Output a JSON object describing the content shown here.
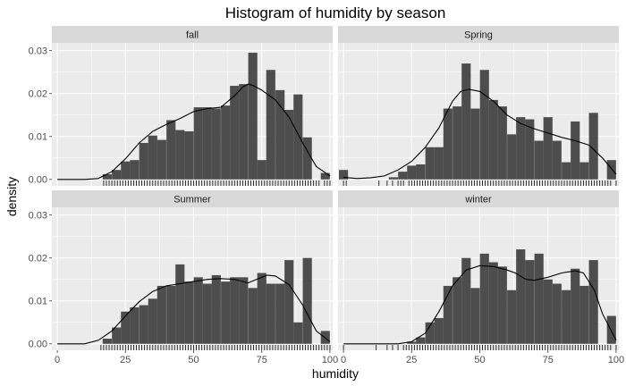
{
  "chart_data": {
    "type": "bar",
    "title": "Histogram of humidity by season",
    "xlabel": "humidity",
    "ylabel": "density",
    "xlim": [
      -2,
      101
    ],
    "ylim": [
      -0.0015,
      0.0318
    ],
    "x_ticks": [
      0,
      25,
      50,
      75,
      100
    ],
    "x_tick_labels": [
      "0",
      "25",
      "50",
      "75",
      "100"
    ],
    "y_ticks": [
      0,
      0.01,
      0.02,
      0.03
    ],
    "y_tick_labels": [
      "0.00",
      "0.01",
      "0.02",
      "0.03"
    ],
    "bin_width": 3.33,
    "grid": true,
    "colors": {
      "panel_bg": "#ebebeb",
      "strip_bg": "#d9d9d9",
      "bar": "#4d4d4d",
      "grid": "#ffffff",
      "density": "#000000",
      "rug": "#000000"
    },
    "panels": [
      {
        "label": "fall",
        "bins": [
          {
            "x": 18.3,
            "y": 0.0012
          },
          {
            "x": 21.7,
            "y": 0.0022
          },
          {
            "x": 25.0,
            "y": 0.0042
          },
          {
            "x": 28.3,
            "y": 0.0045
          },
          {
            "x": 31.7,
            "y": 0.0085
          },
          {
            "x": 35.0,
            "y": 0.0102
          },
          {
            "x": 38.3,
            "y": 0.0092
          },
          {
            "x": 41.7,
            "y": 0.0138
          },
          {
            "x": 45.0,
            "y": 0.0115
          },
          {
            "x": 48.3,
            "y": 0.0112
          },
          {
            "x": 51.7,
            "y": 0.0168
          },
          {
            "x": 55.0,
            "y": 0.0168
          },
          {
            "x": 58.3,
            "y": 0.0165
          },
          {
            "x": 61.7,
            "y": 0.0172
          },
          {
            "x": 65.0,
            "y": 0.0218
          },
          {
            "x": 68.3,
            "y": 0.0222
          },
          {
            "x": 71.7,
            "y": 0.0295
          },
          {
            "x": 75.0,
            "y": 0.0045
          },
          {
            "x": 78.3,
            "y": 0.0255
          },
          {
            "x": 81.7,
            "y": 0.0208
          },
          {
            "x": 85.0,
            "y": 0.0162
          },
          {
            "x": 88.3,
            "y": 0.0198
          },
          {
            "x": 91.7,
            "y": 0.0098
          },
          {
            "x": 95.0,
            "y": 0.0
          },
          {
            "x": 98.3,
            "y": 0.0015
          }
        ],
        "density": [
          [
            0,
            0
          ],
          [
            10,
            0
          ],
          [
            15,
            0.0002
          ],
          [
            20,
            0.0018
          ],
          [
            25,
            0.0048
          ],
          [
            30,
            0.0085
          ],
          [
            35,
            0.0112
          ],
          [
            40,
            0.0128
          ],
          [
            45,
            0.0142
          ],
          [
            50,
            0.0158
          ],
          [
            55,
            0.0165
          ],
          [
            60,
            0.0168
          ],
          [
            65,
            0.0195
          ],
          [
            68,
            0.0215
          ],
          [
            70,
            0.0222
          ],
          [
            72,
            0.0218
          ],
          [
            75,
            0.0208
          ],
          [
            80,
            0.0185
          ],
          [
            85,
            0.0145
          ],
          [
            90,
            0.0085
          ],
          [
            95,
            0.003
          ],
          [
            100,
            0.0008
          ]
        ],
        "rug": [
          17,
          18,
          19,
          20,
          21,
          22,
          23,
          24,
          25,
          26,
          27,
          28,
          29,
          30,
          31,
          32,
          33,
          34,
          35,
          36,
          37,
          38,
          39,
          40,
          41,
          42,
          43,
          44,
          45,
          46,
          47,
          48,
          49,
          50,
          51,
          52,
          53,
          54,
          55,
          56,
          57,
          58,
          59,
          60,
          61,
          62,
          63,
          64,
          65,
          66,
          67,
          68,
          69,
          70,
          71,
          72,
          73,
          74,
          75,
          76,
          77,
          78,
          79,
          80,
          81,
          82,
          83,
          84,
          85,
          86,
          87,
          88,
          89,
          90,
          91,
          92,
          93,
          94,
          95,
          96,
          98,
          99,
          100
        ]
      },
      {
        "label": "Spring",
        "bins": [
          {
            "x": 0.0,
            "y": 0.0022
          },
          {
            "x": 18.3,
            "y": 0.0005
          },
          {
            "x": 21.7,
            "y": 0.0018
          },
          {
            "x": 25.0,
            "y": 0.0032
          },
          {
            "x": 28.3,
            "y": 0.0035
          },
          {
            "x": 31.7,
            "y": 0.0075
          },
          {
            "x": 35.0,
            "y": 0.0075
          },
          {
            "x": 38.3,
            "y": 0.0165
          },
          {
            "x": 41.7,
            "y": 0.017
          },
          {
            "x": 45.0,
            "y": 0.027
          },
          {
            "x": 48.3,
            "y": 0.0165
          },
          {
            "x": 51.7,
            "y": 0.0255
          },
          {
            "x": 55.0,
            "y": 0.0185
          },
          {
            "x": 58.3,
            "y": 0.017
          },
          {
            "x": 61.7,
            "y": 0.0105
          },
          {
            "x": 65.0,
            "y": 0.0145
          },
          {
            "x": 68.3,
            "y": 0.014
          },
          {
            "x": 71.7,
            "y": 0.009
          },
          {
            "x": 75.0,
            "y": 0.0145
          },
          {
            "x": 78.3,
            "y": 0.009
          },
          {
            "x": 81.7,
            "y": 0.004
          },
          {
            "x": 85.0,
            "y": 0.0135
          },
          {
            "x": 88.3,
            "y": 0.004
          },
          {
            "x": 91.7,
            "y": 0.0155
          },
          {
            "x": 95.0,
            "y": 0.0
          },
          {
            "x": 98.3,
            "y": 0.0045
          }
        ],
        "density": [
          [
            0,
            0.0005
          ],
          [
            5,
            0.0002
          ],
          [
            10,
            0.0004
          ],
          [
            15,
            0.0008
          ],
          [
            20,
            0.0022
          ],
          [
            25,
            0.0042
          ],
          [
            30,
            0.0075
          ],
          [
            35,
            0.012
          ],
          [
            40,
            0.0182
          ],
          [
            43,
            0.0205
          ],
          [
            46,
            0.021
          ],
          [
            50,
            0.0205
          ],
          [
            55,
            0.0182
          ],
          [
            60,
            0.015
          ],
          [
            65,
            0.013
          ],
          [
            70,
            0.0118
          ],
          [
            75,
            0.0108
          ],
          [
            80,
            0.0098
          ],
          [
            85,
            0.009
          ],
          [
            90,
            0.008
          ],
          [
            95,
            0.005
          ],
          [
            100,
            0.0012
          ]
        ],
        "rug": [
          0,
          1,
          13,
          16,
          18,
          20,
          21,
          22,
          24,
          25,
          26,
          27,
          28,
          29,
          30,
          31,
          32,
          33,
          34,
          35,
          36,
          37,
          38,
          39,
          40,
          41,
          42,
          43,
          44,
          45,
          46,
          47,
          48,
          49,
          50,
          51,
          52,
          53,
          54,
          55,
          56,
          57,
          58,
          59,
          60,
          61,
          62,
          63,
          64,
          65,
          66,
          67,
          68,
          69,
          70,
          71,
          72,
          73,
          74,
          75,
          76,
          77,
          78,
          79,
          80,
          81,
          82,
          83,
          84,
          85,
          86,
          87,
          88,
          89,
          90,
          91,
          92,
          93,
          94,
          95,
          96,
          97,
          98,
          100
        ]
      },
      {
        "label": "Summer",
        "bins": [
          {
            "x": 18.3,
            "y": 0.0012
          },
          {
            "x": 21.7,
            "y": 0.0038
          },
          {
            "x": 25.0,
            "y": 0.0075
          },
          {
            "x": 28.3,
            "y": 0.0085
          },
          {
            "x": 31.7,
            "y": 0.009
          },
          {
            "x": 35.0,
            "y": 0.0105
          },
          {
            "x": 38.3,
            "y": 0.0135
          },
          {
            "x": 41.7,
            "y": 0.0135
          },
          {
            "x": 45.0,
            "y": 0.0185
          },
          {
            "x": 48.3,
            "y": 0.0145
          },
          {
            "x": 51.7,
            "y": 0.0155
          },
          {
            "x": 55.0,
            "y": 0.014
          },
          {
            "x": 58.3,
            "y": 0.016
          },
          {
            "x": 61.7,
            "y": 0.0145
          },
          {
            "x": 65.0,
            "y": 0.0155
          },
          {
            "x": 68.3,
            "y": 0.0155
          },
          {
            "x": 71.7,
            "y": 0.013
          },
          {
            "x": 75.0,
            "y": 0.0165
          },
          {
            "x": 78.3,
            "y": 0.014
          },
          {
            "x": 81.7,
            "y": 0.014
          },
          {
            "x": 85.0,
            "y": 0.0195
          },
          {
            "x": 88.3,
            "y": 0.005
          },
          {
            "x": 91.7,
            "y": 0.02
          },
          {
            "x": 95.0,
            "y": 0.0
          },
          {
            "x": 98.3,
            "y": 0.003
          }
        ],
        "density": [
          [
            0,
            0
          ],
          [
            10,
            0
          ],
          [
            15,
            0.0008
          ],
          [
            20,
            0.003
          ],
          [
            25,
            0.0065
          ],
          [
            30,
            0.0098
          ],
          [
            35,
            0.0122
          ],
          [
            40,
            0.0135
          ],
          [
            45,
            0.014
          ],
          [
            50,
            0.0145
          ],
          [
            55,
            0.015
          ],
          [
            60,
            0.0152
          ],
          [
            65,
            0.015
          ],
          [
            70,
            0.0142
          ],
          [
            73,
            0.015
          ],
          [
            77,
            0.016
          ],
          [
            80,
            0.0158
          ],
          [
            85,
            0.0138
          ],
          [
            90,
            0.009
          ],
          [
            95,
            0.003
          ],
          [
            100,
            0.0005
          ]
        ],
        "rug": [
          16,
          17,
          18,
          19,
          20,
          21,
          22,
          23,
          24,
          25,
          26,
          27,
          28,
          29,
          30,
          31,
          32,
          33,
          34,
          35,
          36,
          37,
          38,
          39,
          40,
          41,
          42,
          43,
          44,
          45,
          46,
          47,
          48,
          49,
          50,
          51,
          52,
          53,
          54,
          55,
          56,
          57,
          58,
          59,
          60,
          61,
          62,
          63,
          64,
          65,
          66,
          67,
          68,
          69,
          70,
          71,
          72,
          73,
          74,
          75,
          76,
          77,
          78,
          79,
          80,
          81,
          82,
          83,
          84,
          85,
          86,
          87,
          88,
          89,
          90,
          91,
          92,
          93,
          94,
          95,
          96,
          97,
          98,
          99,
          100
        ]
      },
      {
        "label": "winter",
        "bins": [
          {
            "x": 21.7,
            "y": 0.0
          },
          {
            "x": 25.0,
            "y": 0.0005
          },
          {
            "x": 28.3,
            "y": 0.0015
          },
          {
            "x": 31.7,
            "y": 0.005
          },
          {
            "x": 35.0,
            "y": 0.006
          },
          {
            "x": 38.3,
            "y": 0.0135
          },
          {
            "x": 41.7,
            "y": 0.0155
          },
          {
            "x": 45.0,
            "y": 0.02
          },
          {
            "x": 48.3,
            "y": 0.013
          },
          {
            "x": 51.7,
            "y": 0.021
          },
          {
            "x": 55.0,
            "y": 0.019
          },
          {
            "x": 58.3,
            "y": 0.018
          },
          {
            "x": 61.7,
            "y": 0.0125
          },
          {
            "x": 65.0,
            "y": 0.022
          },
          {
            "x": 68.3,
            "y": 0.0195
          },
          {
            "x": 71.7,
            "y": 0.021
          },
          {
            "x": 75.0,
            "y": 0.015
          },
          {
            "x": 78.3,
            "y": 0.014
          },
          {
            "x": 81.7,
            "y": 0.0125
          },
          {
            "x": 85.0,
            "y": 0.0175
          },
          {
            "x": 88.3,
            "y": 0.0135
          },
          {
            "x": 91.7,
            "y": 0.0195
          },
          {
            "x": 95.0,
            "y": 0.0
          },
          {
            "x": 98.3,
            "y": 0.0065
          }
        ],
        "density": [
          [
            0,
            0
          ],
          [
            20,
            0
          ],
          [
            25,
            0.0005
          ],
          [
            30,
            0.0025
          ],
          [
            35,
            0.0075
          ],
          [
            40,
            0.0135
          ],
          [
            45,
            0.0172
          ],
          [
            50,
            0.0182
          ],
          [
            55,
            0.018
          ],
          [
            60,
            0.0172
          ],
          [
            63,
            0.0165
          ],
          [
            67,
            0.015
          ],
          [
            70,
            0.0148
          ],
          [
            75,
            0.0155
          ],
          [
            80,
            0.0165
          ],
          [
            85,
            0.017
          ],
          [
            88,
            0.0165
          ],
          [
            92,
            0.0125
          ],
          [
            95,
            0.007
          ],
          [
            100,
            0.0008
          ]
        ],
        "rug": [
          0,
          12,
          16,
          18,
          20,
          22,
          23,
          24,
          25,
          26,
          27,
          28,
          29,
          30,
          31,
          32,
          33,
          34,
          35,
          36,
          37,
          38,
          39,
          40,
          41,
          42,
          43,
          44,
          45,
          46,
          47,
          48,
          49,
          50,
          51,
          52,
          53,
          54,
          55,
          56,
          57,
          58,
          59,
          60,
          61,
          62,
          63,
          64,
          65,
          66,
          67,
          68,
          69,
          70,
          71,
          72,
          73,
          74,
          75,
          76,
          77,
          78,
          79,
          80,
          81,
          82,
          83,
          84,
          85,
          86,
          87,
          88,
          89,
          90,
          91,
          92,
          93,
          94,
          95,
          96,
          97,
          98,
          100
        ]
      }
    ]
  }
}
